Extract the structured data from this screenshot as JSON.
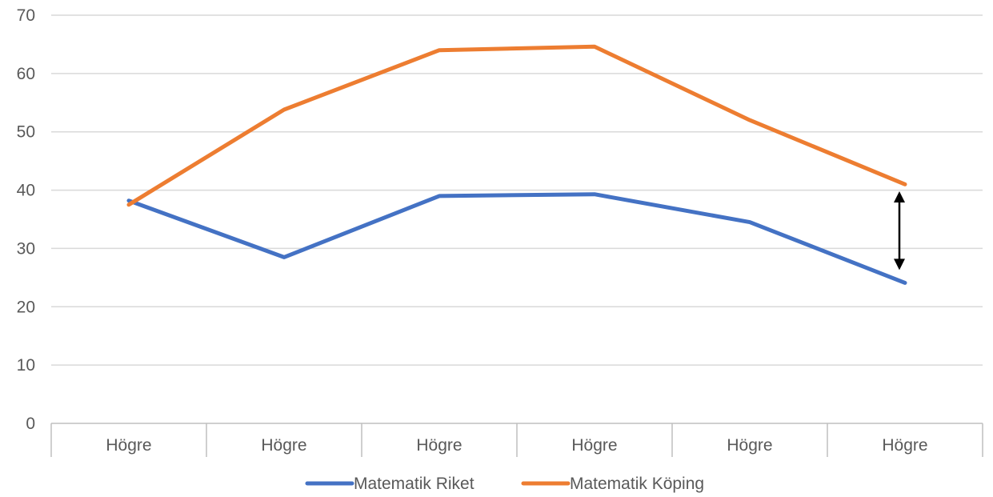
{
  "chart_data": {
    "type": "line",
    "categories": [
      "Högre",
      "Högre",
      "Högre",
      "Högre",
      "Högre",
      "Högre"
    ],
    "series": [
      {
        "name": "Matematik Riket",
        "color": "#4472C4",
        "values": [
          38.2,
          28.5,
          39.0,
          39.3,
          34.5,
          24.1
        ]
      },
      {
        "name": "Matematik Köping",
        "color": "#ED7D31",
        "values": [
          37.5,
          53.8,
          64.0,
          64.6,
          52.0,
          41.0
        ]
      }
    ],
    "ylim": [
      0,
      70
    ],
    "yticks": [
      0,
      10,
      20,
      30,
      40,
      50,
      60,
      70
    ],
    "grid": true,
    "legend_position": "bottom",
    "annotation": {
      "type": "double-arrow",
      "category_index": 5,
      "from": 39.8,
      "to": 26.3,
      "color": "#000000"
    }
  }
}
